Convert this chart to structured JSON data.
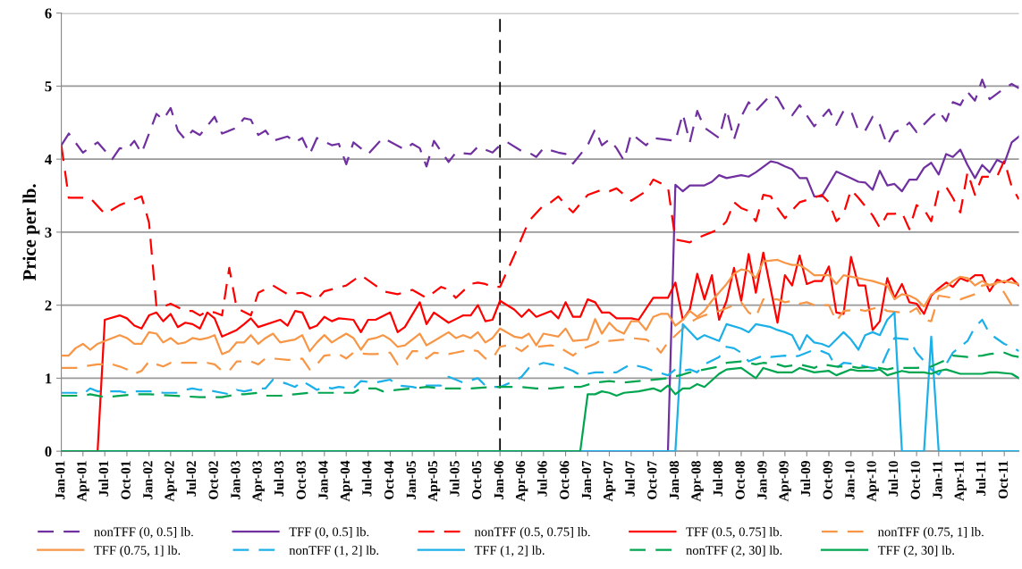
{
  "chart_data": {
    "type": "line",
    "ylabel": "Price per lb.",
    "xlim": [
      "2001-01",
      "2011-12"
    ],
    "ylim": [
      0,
      6
    ],
    "yticks": [
      0,
      1,
      2,
      3,
      4,
      5,
      6
    ],
    "xticks": [
      {
        "value": "2001-01",
        "label": "Jan-01"
      },
      {
        "value": "2001-04",
        "label": "Apr-01"
      },
      {
        "value": "2001-07",
        "label": "Jul-01"
      },
      {
        "value": "2001-10",
        "label": "Oct-01"
      },
      {
        "value": "2002-01",
        "label": "Jan-02"
      },
      {
        "value": "2002-04",
        "label": "Apr-02"
      },
      {
        "value": "2002-07",
        "label": "Jul-02"
      },
      {
        "value": "2002-10",
        "label": "Oct-02"
      },
      {
        "value": "2003-01",
        "label": "Jan-03"
      },
      {
        "value": "2003-04",
        "label": "Apr-03"
      },
      {
        "value": "2003-07",
        "label": "Jul-03"
      },
      {
        "value": "2003-10",
        "label": "Oct-03"
      },
      {
        "value": "2004-01",
        "label": "Jan-04"
      },
      {
        "value": "2004-04",
        "label": "Apr-04"
      },
      {
        "value": "2004-07",
        "label": "Jul-04"
      },
      {
        "value": "2004-10",
        "label": "Oct-04"
      },
      {
        "value": "2005-01",
        "label": "Jan-05"
      },
      {
        "value": "2005-04",
        "label": "Apr-05"
      },
      {
        "value": "2005-07",
        "label": "Jul-05"
      },
      {
        "value": "2005-10",
        "label": "Oct-05"
      },
      {
        "value": "2006-01",
        "label": "Jan-06"
      },
      {
        "value": "2006-04",
        "label": "Apr-06"
      },
      {
        "value": "2006-07",
        "label": "Jul-06"
      },
      {
        "value": "2006-10",
        "label": "Oct-06"
      },
      {
        "value": "2007-01",
        "label": "Jan-07"
      },
      {
        "value": "2007-04",
        "label": "Apr-07"
      },
      {
        "value": "2007-07",
        "label": "Jul-07"
      },
      {
        "value": "2007-10",
        "label": "Oct-07"
      },
      {
        "value": "2008-01",
        "label": "Jan-08"
      },
      {
        "value": "2008-04",
        "label": "Apr-08"
      },
      {
        "value": "2008-07",
        "label": "Jul-08"
      },
      {
        "value": "2008-10",
        "label": "Oct-08"
      },
      {
        "value": "2009-01",
        "label": "Jan-09"
      },
      {
        "value": "2009-04",
        "label": "Apr-09"
      },
      {
        "value": "2009-07",
        "label": "Jul-09"
      },
      {
        "value": "2009-10",
        "label": "Oct-09"
      },
      {
        "value": "2010-01",
        "label": "Jan-10"
      },
      {
        "value": "2010-04",
        "label": "Apr-10"
      },
      {
        "value": "2010-07",
        "label": "Jul-10"
      },
      {
        "value": "2010-10",
        "label": "Oct-10"
      },
      {
        "value": "2011-01",
        "label": "Jan-11"
      },
      {
        "value": "2011-04",
        "label": "Apr-11"
      },
      {
        "value": "2011-07",
        "label": "Jul-11"
      },
      {
        "value": "2011-10",
        "label": "Oct-11"
      }
    ],
    "grid": "y",
    "legend": "bottom",
    "marker": "none",
    "ref_lines": [
      {
        "axis": "x",
        "value": "2006-01",
        "color": "#000000",
        "line_style": "dashed"
      }
    ],
    "series": [
      {
        "name": "nonTFF (0, 0.5] lb.",
        "color": "#7030a0",
        "line_style": "dashed",
        "x": [
          "2001-01",
          "2001-02",
          "2001-04",
          "2001-06",
          "2001-08",
          "2001-09",
          "2001-10",
          "2001-11",
          "2001-12",
          "2002-02",
          "2002-03",
          "2002-04",
          "2002-05",
          "2002-06",
          "2002-07",
          "2002-08",
          "2002-10",
          "2002-11",
          "2003-01",
          "2003-02",
          "2003-03",
          "2003-04",
          "2003-05",
          "2003-06",
          "2003-08",
          "2003-09",
          "2003-10",
          "2003-11",
          "2003-12",
          "2004-02",
          "2004-03",
          "2004-04",
          "2004-05",
          "2004-07",
          "2004-09",
          "2004-12",
          "2005-01",
          "2005-02",
          "2005-03",
          "2005-04",
          "2005-06",
          "2005-07",
          "2005-09",
          "2005-10",
          "2005-12",
          "2006-01",
          "2006-02",
          "2006-04",
          "2006-05",
          "2006-06",
          "2006-07",
          "2006-09",
          "2006-10",
          "2006-11",
          "2007-01",
          "2007-02",
          "2007-03",
          "2007-04",
          "2007-05",
          "2007-06",
          "2007-07",
          "2007-09",
          "2007-10",
          "2008-01",
          "2008-02",
          "2008-03",
          "2008-04",
          "2008-05",
          "2008-07",
          "2008-08",
          "2008-09",
          "2008-10",
          "2008-11",
          "2008-12",
          "2009-02",
          "2009-03",
          "2009-04",
          "2009-05",
          "2009-06",
          "2009-08",
          "2009-10",
          "2009-11",
          "2009-12",
          "2010-01",
          "2010-02",
          "2010-03",
          "2010-04",
          "2010-05",
          "2010-06",
          "2010-07",
          "2010-08",
          "2010-09",
          "2010-10",
          "2010-12",
          "2011-01",
          "2011-02",
          "2011-03",
          "2011-04",
          "2011-05",
          "2011-06",
          "2011-07",
          "2011-08",
          "2011-10",
          "2011-11",
          "2011-12"
        ],
        "values": [
          4.19,
          4.35,
          4.09,
          4.23,
          4.0,
          4.15,
          4.13,
          4.25,
          4.08,
          4.62,
          4.54,
          4.7,
          4.39,
          4.27,
          4.39,
          4.33,
          4.58,
          4.35,
          4.43,
          4.56,
          4.54,
          4.33,
          4.39,
          4.25,
          4.31,
          4.23,
          4.29,
          4.07,
          4.29,
          4.19,
          4.21,
          3.93,
          4.23,
          4.07,
          4.29,
          4.13,
          4.21,
          4.15,
          3.9,
          4.25,
          3.96,
          4.09,
          4.07,
          4.17,
          4.09,
          4.19,
          4.23,
          4.11,
          4.09,
          4.03,
          4.15,
          4.09,
          4.07,
          3.94,
          4.19,
          4.41,
          4.19,
          4.27,
          4.15,
          3.98,
          4.35,
          4.19,
          4.29,
          4.25,
          4.62,
          4.23,
          4.66,
          4.43,
          4.29,
          4.68,
          4.27,
          4.58,
          4.78,
          4.66,
          4.88,
          4.84,
          4.66,
          4.6,
          4.74,
          4.45,
          4.68,
          4.47,
          4.66,
          4.66,
          4.39,
          4.39,
          4.58,
          4.47,
          4.19,
          4.37,
          4.41,
          4.5,
          4.37,
          4.58,
          4.66,
          4.52,
          4.78,
          4.74,
          4.92,
          4.8,
          5.09,
          4.82,
          4.97,
          5.03,
          4.97
        ]
      },
      {
        "name": "TFF (0, 0.5] lb.",
        "color": "#7030a0",
        "line_style": "solid",
        "x": [
          "2001-01",
          "2007-12",
          "2008-01",
          "2008-02",
          "2008-03",
          "2008-05",
          "2008-06",
          "2008-07",
          "2008-08",
          "2008-10",
          "2008-11",
          "2008-12",
          "2009-02",
          "2009-03",
          "2009-04",
          "2009-05",
          "2009-06",
          "2009-07",
          "2009-08",
          "2009-09",
          "2009-11",
          "2010-01",
          "2010-02",
          "2010-03",
          "2010-04",
          "2010-05",
          "2010-06",
          "2010-07",
          "2010-08",
          "2010-09",
          "2010-10",
          "2010-11",
          "2010-12",
          "2011-01",
          "2011-02",
          "2011-03",
          "2011-04",
          "2011-05",
          "2011-06",
          "2011-07",
          "2011-08",
          "2011-09",
          "2011-10",
          "2011-11",
          "2011-12"
        ],
        "values": [
          0,
          0,
          3.65,
          3.56,
          3.64,
          3.64,
          3.69,
          3.78,
          3.74,
          3.78,
          3.76,
          3.82,
          3.97,
          3.95,
          3.9,
          3.86,
          3.74,
          3.74,
          3.49,
          3.49,
          3.83,
          3.74,
          3.69,
          3.68,
          3.58,
          3.84,
          3.64,
          3.66,
          3.56,
          3.72,
          3.72,
          3.88,
          3.95,
          3.79,
          4.07,
          4.03,
          4.13,
          3.92,
          3.74,
          3.92,
          3.82,
          3.99,
          3.94,
          4.23,
          4.31
        ]
      },
      {
        "name": "nonTFF (0.5, 0.75] lb.",
        "color": "#ff0000",
        "line_style": "dashed",
        "x": [
          "2001-01",
          "2001-02",
          "2001-05",
          "2001-07",
          "2001-09",
          "2001-12",
          "2002-01",
          "2002-02",
          "2002-03",
          "2002-04",
          "2002-06",
          "2002-07",
          "2002-08",
          "2002-09",
          "2002-10",
          "2002-11",
          "2002-12",
          "2003-01",
          "2003-03",
          "2003-04",
          "2003-06",
          "2003-08",
          "2003-10",
          "2003-12",
          "2004-01",
          "2004-04",
          "2004-06",
          "2004-08",
          "2004-09",
          "2004-11",
          "2005-01",
          "2005-03",
          "2005-05",
          "2005-06",
          "2005-07",
          "2005-09",
          "2005-10",
          "2005-11",
          "2005-12",
          "2006-01",
          "2006-03",
          "2006-05",
          "2006-07",
          "2006-08",
          "2006-09",
          "2006-10",
          "2006-11",
          "2007-01",
          "2007-03",
          "2007-04",
          "2007-05",
          "2007-07",
          "2007-09",
          "2007-10",
          "2007-12",
          "2008-01",
          "2008-03",
          "2008-04",
          "2008-06",
          "2008-07",
          "2008-08",
          "2008-09",
          "2008-10",
          "2008-11",
          "2008-12",
          "2009-01",
          "2009-02",
          "2009-03",
          "2009-04",
          "2009-06",
          "2009-08",
          "2009-09",
          "2009-10",
          "2009-11",
          "2009-12",
          "2010-01",
          "2010-02",
          "2010-04",
          "2010-05",
          "2010-06",
          "2010-07",
          "2010-08",
          "2010-09",
          "2010-10",
          "2010-11",
          "2010-12",
          "2011-01",
          "2011-02",
          "2011-03",
          "2011-04",
          "2011-05",
          "2011-06",
          "2011-07",
          "2011-09",
          "2011-10",
          "2011-11",
          "2011-12"
        ],
        "values": [
          4.19,
          3.47,
          3.47,
          3.25,
          3.37,
          3.49,
          3.13,
          1.98,
          1.98,
          2.02,
          1.92,
          1.92,
          1.86,
          1.92,
          1.9,
          1.86,
          2.51,
          1.96,
          1.86,
          2.17,
          2.27,
          2.15,
          2.17,
          2.08,
          2.19,
          2.27,
          2.41,
          2.27,
          2.19,
          2.15,
          2.21,
          2.1,
          2.25,
          2.21,
          2.1,
          2.29,
          2.31,
          2.29,
          2.25,
          2.25,
          2.68,
          3.15,
          3.37,
          3.41,
          3.49,
          3.37,
          3.27,
          3.51,
          3.58,
          3.56,
          3.6,
          3.43,
          3.56,
          3.72,
          3.62,
          2.9,
          2.86,
          2.92,
          3.0,
          3.04,
          3.15,
          3.41,
          3.33,
          3.29,
          3.15,
          3.51,
          3.49,
          3.33,
          3.19,
          3.41,
          3.47,
          3.51,
          3.41,
          3.15,
          3.25,
          3.58,
          3.47,
          3.23,
          3.06,
          3.25,
          3.25,
          3.27,
          3.04,
          3.37,
          3.31,
          3.15,
          3.58,
          3.62,
          3.47,
          3.27,
          3.82,
          3.51,
          3.76,
          3.76,
          3.98,
          3.62,
          3.45
        ]
      },
      {
        "name": "TFF (0.5, 0.75] lb.",
        "color": "#ff0000",
        "line_style": "solid",
        "x": [
          "2001-01",
          "2001-06",
          "2001-07",
          "2001-09",
          "2001-10",
          "2001-11",
          "2001-12",
          "2002-01",
          "2002-02",
          "2002-03",
          "2002-04",
          "2002-05",
          "2002-06",
          "2002-07",
          "2002-08",
          "2002-09",
          "2002-10",
          "2002-11",
          "2003-01",
          "2003-02",
          "2003-03",
          "2003-04",
          "2003-07",
          "2003-08",
          "2003-09",
          "2003-10",
          "2003-11",
          "2003-12",
          "2004-01",
          "2004-02",
          "2004-03",
          "2004-05",
          "2004-06",
          "2004-07",
          "2004-08",
          "2004-10",
          "2004-11",
          "2004-12",
          "2005-02",
          "2005-03",
          "2005-04",
          "2005-06",
          "2005-08",
          "2005-09",
          "2005-10",
          "2005-11",
          "2005-12",
          "2006-01",
          "2006-03",
          "2006-04",
          "2006-05",
          "2006-06",
          "2006-08",
          "2006-09",
          "2006-10",
          "2006-11",
          "2006-12",
          "2007-01",
          "2007-02",
          "2007-03",
          "2007-04",
          "2007-05",
          "2007-07",
          "2007-08",
          "2007-10",
          "2007-12",
          "2008-01",
          "2008-02",
          "2008-03",
          "2008-04",
          "2008-05",
          "2008-06",
          "2008-07",
          "2008-08",
          "2008-09",
          "2008-10",
          "2008-11",
          "2008-12",
          "2009-01",
          "2009-03",
          "2009-04",
          "2009-05",
          "2009-06",
          "2009-07",
          "2009-08",
          "2009-09",
          "2009-10",
          "2009-11",
          "2009-12",
          "2010-01",
          "2010-02",
          "2010-03",
          "2010-04",
          "2010-05",
          "2010-06",
          "2010-07",
          "2010-08",
          "2010-09",
          "2010-10",
          "2010-11",
          "2010-12",
          "2011-01",
          "2011-02",
          "2011-03",
          "2011-04",
          "2011-05",
          "2011-06",
          "2011-07",
          "2011-08",
          "2011-09",
          "2011-10",
          "2011-11",
          "2011-12"
        ],
        "values": [
          0,
          0,
          1.8,
          1.86,
          1.82,
          1.72,
          1.68,
          1.86,
          1.9,
          1.78,
          1.88,
          1.7,
          1.76,
          1.74,
          1.68,
          1.9,
          1.82,
          1.57,
          1.66,
          1.74,
          1.82,
          1.7,
          1.8,
          1.72,
          1.92,
          1.9,
          1.68,
          1.72,
          1.84,
          1.78,
          1.82,
          1.8,
          1.63,
          1.8,
          1.8,
          1.9,
          1.63,
          1.7,
          2.04,
          1.74,
          1.9,
          1.76,
          1.86,
          1.86,
          2.0,
          1.78,
          1.8,
          2.06,
          1.94,
          1.84,
          1.94,
          1.84,
          1.92,
          1.82,
          2.04,
          1.84,
          1.84,
          2.08,
          2.04,
          1.9,
          1.9,
          1.82,
          1.82,
          1.8,
          2.1,
          2.1,
          2.31,
          1.8,
          1.94,
          2.43,
          2.08,
          2.41,
          1.8,
          2.06,
          2.51,
          2.06,
          2.7,
          2.17,
          2.72,
          1.76,
          2.41,
          2.27,
          2.68,
          2.29,
          2.33,
          2.33,
          2.53,
          1.9,
          1.88,
          2.66,
          2.27,
          2.27,
          1.66,
          1.78,
          2.37,
          2.1,
          2.29,
          2.04,
          2.02,
          1.88,
          2.13,
          2.23,
          2.31,
          2.25,
          2.37,
          2.33,
          2.41,
          2.41,
          2.19,
          2.35,
          2.31,
          2.37,
          2.27
        ]
      },
      {
        "name": "nonTFF (0.75, 1] lb.",
        "color": "#f79646",
        "line_style": "dashed",
        "x": [
          "2001-01",
          "2001-03",
          "2001-04",
          "2001-06",
          "2001-08",
          "2001-09",
          "2001-10",
          "2001-11",
          "2001-12",
          "2002-01",
          "2002-02",
          "2002-03",
          "2002-04",
          "2002-07",
          "2002-09",
          "2002-10",
          "2002-11",
          "2002-12",
          "2003-01",
          "2003-03",
          "2003-04",
          "2003-05",
          "2003-06",
          "2003-08",
          "2003-09",
          "2003-10",
          "2003-11",
          "2003-12",
          "2004-01",
          "2004-03",
          "2004-04",
          "2004-05",
          "2004-07",
          "2004-08",
          "2004-10",
          "2004-11",
          "2004-12",
          "2005-01",
          "2005-02",
          "2005-03",
          "2005-04",
          "2005-06",
          "2005-07",
          "2005-09",
          "2005-10",
          "2005-11",
          "2005-12",
          "2006-01",
          "2006-02",
          "2006-03",
          "2006-04",
          "2006-05",
          "2006-06",
          "2006-08",
          "2006-09",
          "2006-11",
          "2006-12",
          "2007-02",
          "2007-03",
          "2007-04",
          "2007-06",
          "2007-07",
          "2007-09",
          "2007-10",
          "2007-11",
          "2007-12",
          "2008-02",
          "2008-03",
          "2008-04",
          "2008-05",
          "2008-07",
          "2008-09",
          "2008-10",
          "2008-11",
          "2008-12",
          "2009-01",
          "2009-03",
          "2009-04",
          "2009-05",
          "2009-06",
          "2009-07",
          "2009-08",
          "2009-10",
          "2009-11",
          "2009-12",
          "2010-02",
          "2010-03",
          "2010-05",
          "2010-06",
          "2010-08",
          "2010-09",
          "2010-10",
          "2010-11",
          "2010-12",
          "2011-01",
          "2011-03",
          "2011-04",
          "2011-06",
          "2011-07",
          "2011-09",
          "2011-10",
          "2011-11",
          "2011-12"
        ],
        "values": [
          1.14,
          1.14,
          1.16,
          1.19,
          1.19,
          1.16,
          1.12,
          1.06,
          1.1,
          1.23,
          1.19,
          1.16,
          1.21,
          1.21,
          1.21,
          1.19,
          1.1,
          1.1,
          1.23,
          1.23,
          1.19,
          1.27,
          1.27,
          1.25,
          1.25,
          1.27,
          1.12,
          1.19,
          1.31,
          1.33,
          1.27,
          1.35,
          1.33,
          1.33,
          1.35,
          1.19,
          1.23,
          1.37,
          1.37,
          1.27,
          1.35,
          1.33,
          1.35,
          1.39,
          1.37,
          1.27,
          1.27,
          1.43,
          1.45,
          1.43,
          1.37,
          1.45,
          1.43,
          1.45,
          1.43,
          1.31,
          1.39,
          1.47,
          1.53,
          1.51,
          1.53,
          1.55,
          1.53,
          1.47,
          1.35,
          1.49,
          1.68,
          1.76,
          1.82,
          1.86,
          1.92,
          2.0,
          2.04,
          1.9,
          1.84,
          2.08,
          2.08,
          2.04,
          2.06,
          2.02,
          2.04,
          2.0,
          2.0,
          1.78,
          1.92,
          1.94,
          1.92,
          1.98,
          1.92,
          1.9,
          1.9,
          1.96,
          1.8,
          1.78,
          2.13,
          2.1,
          2.08,
          2.15,
          2.27,
          2.29,
          2.17,
          2.0,
          1.94
        ]
      },
      {
        "name": "TFF (0.75, 1] lb.",
        "color": "#f79646",
        "line_style": "solid",
        "x": [
          "2001-01",
          "2001-02",
          "2001-03",
          "2001-04",
          "2001-05",
          "2001-06",
          "2001-07",
          "2001-08",
          "2001-09",
          "2001-10",
          "2001-11",
          "2001-12",
          "2002-01",
          "2002-02",
          "2002-03",
          "2002-04",
          "2002-05",
          "2002-06",
          "2002-07",
          "2002-08",
          "2002-09",
          "2002-10",
          "2002-11",
          "2002-12",
          "2003-01",
          "2003-02",
          "2003-03",
          "2003-04",
          "2003-05",
          "2003-06",
          "2003-07",
          "2003-08",
          "2003-09",
          "2003-10",
          "2003-11",
          "2003-12",
          "2004-01",
          "2004-02",
          "2004-03",
          "2004-04",
          "2004-05",
          "2004-06",
          "2004-07",
          "2004-08",
          "2004-09",
          "2004-10",
          "2004-11",
          "2004-12",
          "2005-02",
          "2005-03",
          "2005-04",
          "2005-06",
          "2005-07",
          "2005-08",
          "2005-09",
          "2005-10",
          "2005-11",
          "2005-12",
          "2006-01",
          "2006-03",
          "2006-04",
          "2006-05",
          "2006-06",
          "2006-07",
          "2006-09",
          "2006-10",
          "2006-11",
          "2007-01",
          "2007-02",
          "2007-03",
          "2007-04",
          "2007-05",
          "2007-06",
          "2007-07",
          "2007-08",
          "2007-09",
          "2007-10",
          "2007-11",
          "2007-12",
          "2008-01",
          "2008-02",
          "2008-03",
          "2008-04",
          "2008-05",
          "2008-06",
          "2008-08",
          "2008-09",
          "2008-10",
          "2008-11",
          "2008-12",
          "2009-01",
          "2009-03",
          "2009-04",
          "2009-05",
          "2009-06",
          "2009-07",
          "2009-08",
          "2009-10",
          "2009-11",
          "2009-12",
          "2010-02",
          "2010-03",
          "2010-04",
          "2010-06",
          "2010-07",
          "2010-08",
          "2010-09",
          "2010-10",
          "2010-11",
          "2010-12",
          "2011-02",
          "2011-03",
          "2011-04",
          "2011-05",
          "2011-06",
          "2011-07",
          "2011-08",
          "2011-09",
          "2011-10",
          "2011-12"
        ],
        "values": [
          1.31,
          1.31,
          1.41,
          1.47,
          1.39,
          1.47,
          1.51,
          1.55,
          1.59,
          1.55,
          1.47,
          1.47,
          1.63,
          1.61,
          1.49,
          1.55,
          1.47,
          1.49,
          1.55,
          1.53,
          1.55,
          1.59,
          1.33,
          1.37,
          1.49,
          1.49,
          1.59,
          1.47,
          1.55,
          1.61,
          1.49,
          1.51,
          1.53,
          1.59,
          1.37,
          1.49,
          1.59,
          1.49,
          1.55,
          1.61,
          1.55,
          1.39,
          1.53,
          1.55,
          1.59,
          1.53,
          1.43,
          1.45,
          1.61,
          1.45,
          1.51,
          1.63,
          1.55,
          1.59,
          1.55,
          1.63,
          1.49,
          1.55,
          1.68,
          1.57,
          1.55,
          1.61,
          1.45,
          1.61,
          1.57,
          1.68,
          1.51,
          1.53,
          1.81,
          1.61,
          1.76,
          1.66,
          1.61,
          1.78,
          1.78,
          1.66,
          1.84,
          1.88,
          1.88,
          1.72,
          1.8,
          1.92,
          1.84,
          1.92,
          2.06,
          2.29,
          2.43,
          2.49,
          2.47,
          2.37,
          2.6,
          2.62,
          2.58,
          2.55,
          2.55,
          2.49,
          2.41,
          2.41,
          2.29,
          2.41,
          2.37,
          2.35,
          2.33,
          2.27,
          2.08,
          2.15,
          2.13,
          2.08,
          1.98,
          2.15,
          2.25,
          2.33,
          2.39,
          2.37,
          2.27,
          2.33,
          2.27,
          2.31,
          2.33,
          2.29
        ]
      },
      {
        "name": "nonTFF (1, 2] lb.",
        "color": "#1cb0e8",
        "line_style": "dashed",
        "x": [
          "2001-01",
          "2001-03",
          "2001-04",
          "2001-05",
          "2001-06",
          "2001-09",
          "2001-10",
          "2001-11",
          "2002-01",
          "2002-02",
          "2002-03",
          "2002-05",
          "2002-06",
          "2002-07",
          "2002-08",
          "2002-09",
          "2002-11",
          "2002-12",
          "2003-01",
          "2003-02",
          "2003-04",
          "2003-05",
          "2003-06",
          "2003-08",
          "2003-09",
          "2003-10",
          "2003-11",
          "2003-12",
          "2004-01",
          "2004-02",
          "2004-03",
          "2004-05",
          "2004-06",
          "2004-08",
          "2004-09",
          "2004-10",
          "2004-11",
          "2005-01",
          "2005-02",
          "2005-03",
          "2005-04",
          "2005-05",
          "2005-06",
          "2005-07",
          "2005-08",
          "2005-10",
          "2005-11",
          "2005-12",
          "2006-01",
          "2006-03",
          "2006-04",
          "2006-05",
          "2006-07",
          "2006-08",
          "2006-10",
          "2006-11",
          "2006-12",
          "2007-02",
          "2007-03",
          "2007-05",
          "2007-06",
          "2007-07",
          "2007-09",
          "2007-10",
          "2007-12",
          "2008-01",
          "2008-02",
          "2008-03",
          "2008-04",
          "2008-05",
          "2008-07",
          "2008-08",
          "2008-09",
          "2008-10",
          "2008-11",
          "2009-01",
          "2009-02",
          "2009-04",
          "2009-05",
          "2009-06",
          "2009-08",
          "2009-09",
          "2009-10",
          "2009-11",
          "2009-12",
          "2010-02",
          "2010-03",
          "2010-05",
          "2010-06",
          "2010-07",
          "2010-09",
          "2010-10",
          "2010-12",
          "2011-01",
          "2011-02",
          "2011-03",
          "2011-05",
          "2011-06",
          "2011-07",
          "2011-08",
          "2011-10",
          "2011-11",
          "2011-12"
        ],
        "values": [
          0.8,
          0.8,
          0.78,
          0.86,
          0.82,
          0.82,
          0.8,
          0.82,
          0.82,
          0.82,
          0.8,
          0.8,
          0.84,
          0.86,
          0.84,
          0.84,
          0.8,
          0.78,
          0.84,
          0.82,
          0.86,
          0.86,
          0.98,
          0.92,
          0.88,
          0.96,
          0.9,
          0.84,
          0.88,
          0.86,
          0.88,
          0.86,
          0.96,
          0.94,
          0.96,
          0.98,
          0.9,
          0.88,
          0.86,
          0.9,
          0.9,
          0.9,
          1.02,
          0.98,
          0.94,
          1.0,
          0.9,
          0.88,
          0.88,
          0.96,
          1.02,
          1.14,
          1.21,
          1.19,
          1.14,
          1.1,
          1.04,
          1.08,
          1.08,
          1.08,
          1.14,
          1.19,
          1.14,
          1.1,
          1.04,
          1.12,
          1.1,
          1.12,
          1.08,
          1.19,
          1.29,
          1.43,
          1.41,
          1.35,
          1.23,
          1.31,
          1.29,
          1.31,
          1.29,
          1.31,
          1.39,
          1.37,
          1.33,
          1.14,
          1.21,
          1.19,
          1.16,
          1.12,
          1.35,
          1.55,
          1.53,
          1.35,
          1.12,
          1.05,
          1.19,
          1.35,
          1.51,
          1.7,
          1.8,
          1.61,
          1.47,
          1.43,
          1.37
        ]
      },
      {
        "name": "TFF (1, 2] lb.",
        "color": "#1cb0e8",
        "line_style": "solid",
        "x": [
          "2001-01",
          "2008-01",
          "2008-02",
          "2008-04",
          "2008-05",
          "2008-07",
          "2008-08",
          "2008-10",
          "2008-11",
          "2008-12",
          "2009-02",
          "2009-03",
          "2009-04",
          "2009-05",
          "2009-06",
          "2009-07",
          "2009-08",
          "2009-09",
          "2009-10",
          "2009-11",
          "2009-12",
          "2010-01",
          "2010-02",
          "2010-03",
          "2010-04",
          "2010-05",
          "2010-06",
          "2010-07",
          "2010-08",
          "2010-11",
          "2010-12",
          "2011-01",
          "2011-12"
        ],
        "values": [
          0,
          0,
          1.74,
          1.53,
          1.59,
          1.51,
          1.74,
          1.68,
          1.63,
          1.74,
          1.7,
          1.66,
          1.63,
          1.59,
          1.39,
          1.59,
          1.49,
          1.47,
          1.43,
          1.53,
          1.63,
          1.53,
          1.39,
          1.59,
          1.63,
          1.59,
          1.8,
          1.9,
          0,
          0,
          1.57,
          0,
          0
        ]
      },
      {
        "name": "nonTFF (2, 30] lb.",
        "color": "#00a550",
        "line_style": "dashed",
        "x": [
          "2001-01",
          "2001-04",
          "2001-05",
          "2001-07",
          "2001-11",
          "2002-01",
          "2002-08",
          "2002-11",
          "2003-01",
          "2003-02",
          "2003-04",
          "2003-05",
          "2003-07",
          "2003-09",
          "2003-11",
          "2004-03",
          "2004-05",
          "2004-06",
          "2004-08",
          "2004-09",
          "2004-11",
          "2005-01",
          "2005-03",
          "2005-05",
          "2005-09",
          "2005-12",
          "2006-04",
          "2006-06",
          "2006-08",
          "2006-10",
          "2006-12",
          "2007-02",
          "2007-04",
          "2007-06",
          "2007-08",
          "2007-10",
          "2007-12",
          "2008-02",
          "2008-03",
          "2008-05",
          "2008-07",
          "2008-08",
          "2008-10",
          "2008-12",
          "2009-01",
          "2009-03",
          "2009-04",
          "2009-06",
          "2009-08",
          "2009-09",
          "2009-11",
          "2010-01",
          "2010-02",
          "2010-04",
          "2010-06",
          "2010-07",
          "2010-09",
          "2010-10",
          "2010-12",
          "2011-02",
          "2011-03",
          "2011-05",
          "2011-07",
          "2011-08",
          "2011-10",
          "2011-11",
          "2011-12"
        ],
        "values": [
          0.76,
          0.76,
          0.78,
          0.74,
          0.78,
          0.78,
          0.74,
          0.74,
          0.78,
          0.78,
          0.8,
          0.76,
          0.76,
          0.78,
          0.8,
          0.8,
          0.8,
          0.86,
          0.86,
          0.82,
          0.84,
          0.86,
          0.88,
          0.86,
          0.86,
          0.88,
          0.88,
          0.86,
          0.86,
          0.88,
          0.88,
          0.94,
          0.96,
          0.94,
          0.96,
          0.98,
          1.0,
          1.05,
          1.08,
          1.12,
          1.16,
          1.21,
          1.23,
          1.19,
          1.21,
          1.19,
          1.16,
          1.19,
          1.14,
          1.19,
          1.16,
          1.16,
          1.14,
          1.16,
          1.12,
          1.14,
          1.14,
          1.14,
          1.16,
          1.25,
          1.31,
          1.29,
          1.31,
          1.33,
          1.35,
          1.31,
          1.29
        ]
      },
      {
        "name": "TFF (2, 30] lb.",
        "color": "#00a550",
        "line_style": "solid",
        "x": [
          "2001-01",
          "2006-12",
          "2007-01",
          "2007-02",
          "2007-03",
          "2007-04",
          "2007-05",
          "2007-06",
          "2007-08",
          "2007-10",
          "2007-11",
          "2007-12",
          "2008-01",
          "2008-02",
          "2008-03",
          "2008-04",
          "2008-05",
          "2008-07",
          "2008-08",
          "2008-10",
          "2008-12",
          "2009-01",
          "2009-03",
          "2009-05",
          "2009-06",
          "2009-08",
          "2009-10",
          "2009-11",
          "2010-01",
          "2010-02",
          "2010-04",
          "2010-05",
          "2010-06",
          "2010-08",
          "2010-09",
          "2010-11",
          "2010-12",
          "2011-01",
          "2011-02",
          "2011-04",
          "2011-05",
          "2011-07",
          "2011-08",
          "2011-09",
          "2011-11",
          "2011-12"
        ],
        "values": [
          0,
          0,
          0.78,
          0.78,
          0.82,
          0.8,
          0.76,
          0.8,
          0.82,
          0.86,
          0.82,
          0.9,
          0.78,
          0.86,
          0.86,
          0.92,
          0.88,
          1.06,
          1.12,
          1.14,
          1.0,
          1.14,
          1.08,
          1.08,
          1.14,
          1.08,
          1.1,
          1.04,
          1.12,
          1.1,
          1.1,
          1.12,
          1.04,
          1.1,
          1.08,
          1.08,
          1.06,
          1.1,
          1.12,
          1.06,
          1.06,
          1.06,
          1.08,
          1.08,
          1.06,
          1.0
        ]
      }
    ]
  }
}
